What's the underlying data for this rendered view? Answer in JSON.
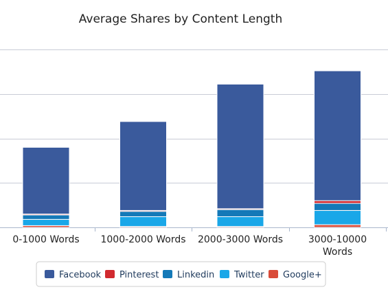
{
  "chart_data": {
    "type": "bar",
    "stacked": true,
    "title": "Average Shares by Content Length",
    "xlabel": "",
    "ylabel": "",
    "categories": [
      "0-1000 Words",
      "1000-2000 Words",
      "2000-3000 Words",
      "3000-10000 Words"
    ],
    "series": [
      {
        "name": "Google+",
        "color": "#d94b38",
        "values": [
          2,
          1,
          1,
          3
        ]
      },
      {
        "name": "Twitter",
        "color": "#1aa7e8",
        "values": [
          7,
          11,
          11,
          16
        ]
      },
      {
        "name": "Linkedin",
        "color": "#1479b8",
        "values": [
          5,
          6,
          8,
          8
        ]
      },
      {
        "name": "Pinterest",
        "color": "#d12a2f",
        "values": [
          1,
          1,
          1,
          3
        ]
      },
      {
        "name": "Facebook",
        "color": "#3a5a9c",
        "values": [
          75,
          100,
          140,
          146
        ]
      }
    ],
    "legend_order": [
      "Facebook",
      "Pinterest",
      "Linkedin",
      "Twitter",
      "Google+"
    ],
    "ylim": [
      0,
      200
    ],
    "gridlines": [
      0,
      50,
      100,
      150,
      200
    ],
    "show_y_tick_labels": false,
    "grid": true,
    "legend_position": "bottom"
  },
  "colors": {
    "grid": "#c8ccd6",
    "axis": "#a9b6cc",
    "legend_border": "#cccccc"
  }
}
